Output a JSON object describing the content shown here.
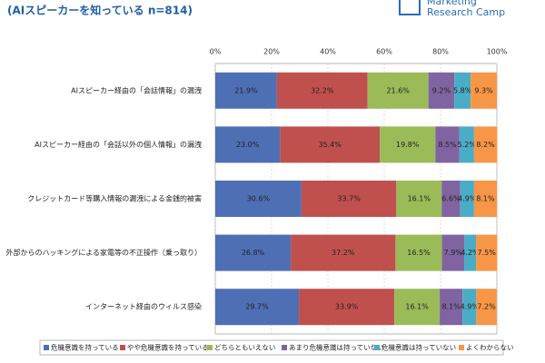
{
  "header": {
    "subtitle": "(AIスピーカーを知っている n=814)",
    "logo": [
      "Marketing",
      "Research Camp"
    ]
  },
  "chart_data": {
    "type": "stacked_barh",
    "categories": [
      "AIスピーカー経由の「会話情報」の漏洩",
      "AIスピーカー経由の「会話以外の個人情報」の漏洩",
      "クレジットカード等購入情報の漏洩による金銭的被害",
      "外部からのハッキングによる家電等の不正操作（乗っ取り）",
      "インターネット経由のウィルス感染"
    ],
    "series": [
      {
        "name": "危機意識を持っている",
        "color": "#4f6fb5",
        "values": [
          21.9,
          23.0,
          30.6,
          26.8,
          29.7
        ],
        "value_labels": [
          "21.9%",
          "23.0%",
          "30.6%",
          "26.8%",
          "29.7%"
        ]
      },
      {
        "name": "やや危機意識を持っている",
        "color": "#c0504d",
        "values": [
          32.2,
          35.4,
          33.7,
          37.2,
          33.9
        ],
        "value_labels": [
          "32.2%",
          "35.4%",
          "33.7%",
          "37.2%",
          "33.9%"
        ]
      },
      {
        "name": "どちらともいえない",
        "color": "#9bbb59",
        "values": [
          21.6,
          19.8,
          16.1,
          16.5,
          16.1
        ],
        "value_labels": [
          "21.6%",
          "19.8%",
          "16.1%",
          "16.5%",
          "16.1%"
        ]
      },
      {
        "name": "あまり危機意識は持っていない",
        "color": "#8064a2",
        "values": [
          9.2,
          8.5,
          6.6,
          7.9,
          8.1
        ],
        "value_labels": [
          "9.2%",
          "8.5%",
          "6.6%",
          "7.9%",
          "8.1%"
        ]
      },
      {
        "name": "危機意識は持っていない",
        "color": "#4bacc6",
        "values": [
          5.8,
          5.2,
          4.9,
          4.2,
          4.9
        ],
        "value_labels": [
          "5.8%",
          "5.2%",
          "4.9%",
          "4.2%",
          "4.9%"
        ]
      },
      {
        "name": "よくわからない",
        "color": "#f79646",
        "values": [
          9.3,
          8.2,
          8.1,
          7.5,
          7.2
        ],
        "value_labels": [
          "9.3%",
          "8.2%",
          "8.1%",
          "7.5%",
          "7.2%"
        ]
      }
    ],
    "xlim": [
      0,
      100
    ],
    "xticks": [
      {
        "value": 0,
        "label": "0%"
      },
      {
        "value": 20,
        "label": "20%"
      },
      {
        "value": 40,
        "label": "40%"
      },
      {
        "value": 60,
        "label": "60%"
      },
      {
        "value": 80,
        "label": "80%"
      },
      {
        "value": 100,
        "label": "100%"
      }
    ],
    "grid": true
  }
}
